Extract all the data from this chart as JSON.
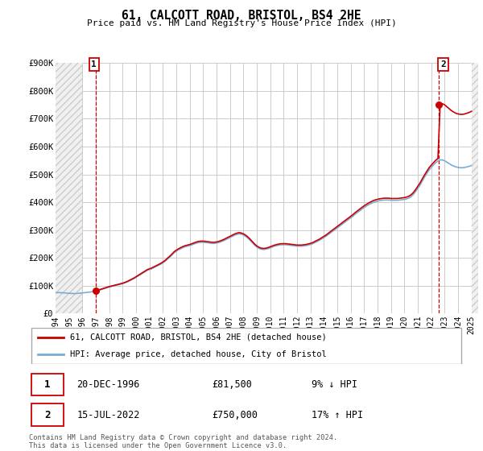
{
  "title": "61, CALCOTT ROAD, BRISTOL, BS4 2HE",
  "subtitle": "Price paid vs. HM Land Registry's House Price Index (HPI)",
  "ylim": [
    0,
    900000
  ],
  "yticks": [
    0,
    100000,
    200000,
    300000,
    400000,
    500000,
    600000,
    700000,
    800000,
    900000
  ],
  "ytick_labels": [
    "£0",
    "£100K",
    "£200K",
    "£300K",
    "£400K",
    "£500K",
    "£600K",
    "£700K",
    "£800K",
    "£900K"
  ],
  "xlim_start": 1994.0,
  "xlim_end": 2025.5,
  "hatch_region_left_end": 1996.0,
  "hatch_region_right_start": 2025.0,
  "xtick_years": [
    1994,
    1995,
    1996,
    1997,
    1998,
    1999,
    2000,
    2001,
    2002,
    2003,
    2004,
    2005,
    2006,
    2007,
    2008,
    2009,
    2010,
    2011,
    2012,
    2013,
    2014,
    2015,
    2016,
    2017,
    2018,
    2019,
    2020,
    2021,
    2022,
    2023,
    2024,
    2025
  ],
  "hpi_color": "#7aadd4",
  "price_color": "#cc0000",
  "sale1_x": 1996.97,
  "sale1_y": 81500,
  "sale2_x": 2022.54,
  "sale2_y": 750000,
  "legend_label1": "61, CALCOTT ROAD, BRISTOL, BS4 2HE (detached house)",
  "legend_label2": "HPI: Average price, detached house, City of Bristol",
  "table_row1_num": "1",
  "table_row1_date": "20-DEC-1996",
  "table_row1_price": "£81,500",
  "table_row1_hpi": "9% ↓ HPI",
  "table_row2_num": "2",
  "table_row2_date": "15-JUL-2022",
  "table_row2_price": "£750,000",
  "table_row2_hpi": "17% ↑ HPI",
  "footer": "Contains HM Land Registry data © Crown copyright and database right 2024.\nThis data is licensed under the Open Government Licence v3.0.",
  "grid_color": "#cccccc",
  "hpi_data": [
    [
      1994.0,
      75000
    ],
    [
      1994.08,
      74500
    ],
    [
      1994.17,
      74800
    ],
    [
      1994.25,
      75200
    ],
    [
      1994.33,
      74900
    ],
    [
      1994.42,
      74600
    ],
    [
      1994.5,
      74200
    ],
    [
      1994.58,
      73800
    ],
    [
      1994.67,
      73500
    ],
    [
      1994.75,
      73200
    ],
    [
      1994.83,
      73000
    ],
    [
      1994.92,
      72800
    ],
    [
      1995.0,
      72500
    ],
    [
      1995.08,
      72200
    ],
    [
      1995.17,
      72000
    ],
    [
      1995.25,
      71800
    ],
    [
      1995.33,
      71600
    ],
    [
      1995.42,
      71400
    ],
    [
      1995.5,
      71500
    ],
    [
      1995.58,
      71800
    ],
    [
      1995.67,
      72200
    ],
    [
      1995.75,
      72600
    ],
    [
      1995.83,
      73000
    ],
    [
      1995.92,
      73500
    ],
    [
      1996.0,
      74000
    ],
    [
      1996.17,
      74800
    ],
    [
      1996.33,
      75500
    ],
    [
      1996.5,
      76500
    ],
    [
      1996.67,
      77800
    ],
    [
      1996.83,
      79000
    ],
    [
      1997.0,
      80500
    ],
    [
      1997.17,
      82500
    ],
    [
      1997.33,
      85000
    ],
    [
      1997.5,
      87500
    ],
    [
      1997.67,
      90000
    ],
    [
      1997.83,
      92500
    ],
    [
      1998.0,
      95000
    ],
    [
      1998.17,
      97000
    ],
    [
      1998.33,
      99000
    ],
    [
      1998.5,
      101000
    ],
    [
      1998.67,
      103000
    ],
    [
      1998.83,
      105000
    ],
    [
      1999.0,
      107000
    ],
    [
      1999.17,
      110000
    ],
    [
      1999.33,
      113000
    ],
    [
      1999.5,
      117000
    ],
    [
      1999.67,
      121000
    ],
    [
      1999.83,
      125000
    ],
    [
      2000.0,
      130000
    ],
    [
      2000.17,
      135000
    ],
    [
      2000.33,
      140000
    ],
    [
      2000.5,
      145000
    ],
    [
      2000.67,
      150000
    ],
    [
      2000.83,
      155000
    ],
    [
      2001.0,
      158000
    ],
    [
      2001.17,
      161000
    ],
    [
      2001.33,
      165000
    ],
    [
      2001.5,
      169000
    ],
    [
      2001.67,
      173000
    ],
    [
      2001.83,
      177000
    ],
    [
      2002.0,
      182000
    ],
    [
      2002.17,
      188000
    ],
    [
      2002.33,
      195000
    ],
    [
      2002.5,
      202000
    ],
    [
      2002.67,
      210000
    ],
    [
      2002.83,
      218000
    ],
    [
      2003.0,
      224000
    ],
    [
      2003.17,
      229000
    ],
    [
      2003.33,
      233000
    ],
    [
      2003.5,
      237000
    ],
    [
      2003.67,
      240000
    ],
    [
      2003.83,
      242000
    ],
    [
      2004.0,
      244000
    ],
    [
      2004.17,
      247000
    ],
    [
      2004.33,
      250000
    ],
    [
      2004.5,
      253000
    ],
    [
      2004.67,
      255000
    ],
    [
      2004.83,
      256000
    ],
    [
      2005.0,
      256000
    ],
    [
      2005.17,
      255000
    ],
    [
      2005.33,
      254000
    ],
    [
      2005.5,
      253000
    ],
    [
      2005.67,
      252000
    ],
    [
      2005.83,
      252000
    ],
    [
      2006.0,
      253000
    ],
    [
      2006.17,
      255000
    ],
    [
      2006.33,
      258000
    ],
    [
      2006.5,
      261000
    ],
    [
      2006.67,
      265000
    ],
    [
      2006.83,
      269000
    ],
    [
      2007.0,
      273000
    ],
    [
      2007.17,
      277000
    ],
    [
      2007.33,
      281000
    ],
    [
      2007.5,
      284000
    ],
    [
      2007.67,
      286000
    ],
    [
      2007.83,
      285000
    ],
    [
      2008.0,
      282000
    ],
    [
      2008.17,
      277000
    ],
    [
      2008.33,
      271000
    ],
    [
      2008.5,
      263000
    ],
    [
      2008.67,
      254000
    ],
    [
      2008.83,
      246000
    ],
    [
      2009.0,
      239000
    ],
    [
      2009.17,
      234000
    ],
    [
      2009.33,
      231000
    ],
    [
      2009.5,
      230000
    ],
    [
      2009.67,
      231000
    ],
    [
      2009.83,
      233000
    ],
    [
      2010.0,
      236000
    ],
    [
      2010.17,
      239000
    ],
    [
      2010.33,
      242000
    ],
    [
      2010.5,
      244000
    ],
    [
      2010.67,
      246000
    ],
    [
      2010.83,
      247000
    ],
    [
      2011.0,
      247000
    ],
    [
      2011.17,
      247000
    ],
    [
      2011.33,
      246000
    ],
    [
      2011.5,
      245000
    ],
    [
      2011.67,
      244000
    ],
    [
      2011.83,
      243000
    ],
    [
      2012.0,
      242000
    ],
    [
      2012.17,
      242000
    ],
    [
      2012.33,
      242000
    ],
    [
      2012.5,
      243000
    ],
    [
      2012.67,
      244000
    ],
    [
      2012.83,
      246000
    ],
    [
      2013.0,
      248000
    ],
    [
      2013.17,
      251000
    ],
    [
      2013.33,
      255000
    ],
    [
      2013.5,
      259000
    ],
    [
      2013.67,
      263000
    ],
    [
      2013.83,
      268000
    ],
    [
      2014.0,
      273000
    ],
    [
      2014.17,
      278000
    ],
    [
      2014.33,
      284000
    ],
    [
      2014.5,
      290000
    ],
    [
      2014.67,
      296000
    ],
    [
      2014.83,
      302000
    ],
    [
      2015.0,
      308000
    ],
    [
      2015.17,
      314000
    ],
    [
      2015.33,
      320000
    ],
    [
      2015.5,
      326000
    ],
    [
      2015.67,
      332000
    ],
    [
      2015.83,
      338000
    ],
    [
      2016.0,
      344000
    ],
    [
      2016.17,
      350000
    ],
    [
      2016.33,
      357000
    ],
    [
      2016.5,
      363000
    ],
    [
      2016.67,
      369000
    ],
    [
      2016.83,
      375000
    ],
    [
      2017.0,
      381000
    ],
    [
      2017.17,
      386000
    ],
    [
      2017.33,
      391000
    ],
    [
      2017.5,
      395000
    ],
    [
      2017.67,
      399000
    ],
    [
      2017.83,
      402000
    ],
    [
      2018.0,
      404000
    ],
    [
      2018.17,
      406000
    ],
    [
      2018.33,
      407000
    ],
    [
      2018.5,
      408000
    ],
    [
      2018.67,
      408000
    ],
    [
      2018.83,
      408000
    ],
    [
      2019.0,
      407000
    ],
    [
      2019.17,
      407000
    ],
    [
      2019.33,
      407000
    ],
    [
      2019.5,
      407000
    ],
    [
      2019.67,
      408000
    ],
    [
      2019.83,
      409000
    ],
    [
      2020.0,
      410000
    ],
    [
      2020.17,
      412000
    ],
    [
      2020.33,
      415000
    ],
    [
      2020.5,
      420000
    ],
    [
      2020.67,
      428000
    ],
    [
      2020.83,
      438000
    ],
    [
      2021.0,
      450000
    ],
    [
      2021.17,
      462000
    ],
    [
      2021.33,
      476000
    ],
    [
      2021.5,
      490000
    ],
    [
      2021.67,
      503000
    ],
    [
      2021.83,
      515000
    ],
    [
      2022.0,
      525000
    ],
    [
      2022.17,
      534000
    ],
    [
      2022.33,
      542000
    ],
    [
      2022.5,
      548000
    ],
    [
      2022.67,
      552000
    ],
    [
      2022.83,
      552000
    ],
    [
      2023.0,
      549000
    ],
    [
      2023.17,
      544000
    ],
    [
      2023.33,
      539000
    ],
    [
      2023.5,
      534000
    ],
    [
      2023.67,
      530000
    ],
    [
      2023.83,
      527000
    ],
    [
      2024.0,
      525000
    ],
    [
      2024.17,
      524000
    ],
    [
      2024.33,
      524000
    ],
    [
      2024.5,
      525000
    ],
    [
      2024.67,
      527000
    ],
    [
      2024.83,
      529000
    ],
    [
      2025.0,
      532000
    ]
  ]
}
